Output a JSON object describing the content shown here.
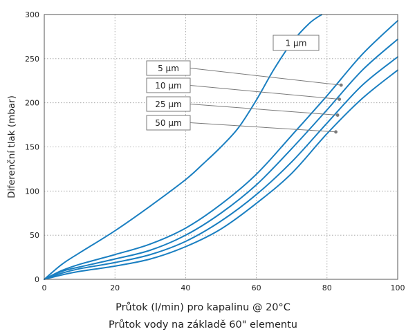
{
  "chart_data": {
    "type": "line",
    "xlabel": "Průtok (l/min) pro kapalinu @ 20°C",
    "subtitle": "Průtok vody na základě 60\" elementu",
    "ylabel": "Diferenční tlak (mbar)",
    "xlim": [
      0,
      100
    ],
    "ylim": [
      0,
      300
    ],
    "xticks": [
      0,
      20,
      40,
      60,
      80,
      100
    ],
    "yticks": [
      0,
      50,
      100,
      150,
      200,
      250,
      300
    ],
    "grid": true,
    "line_color": "#1a7fc1",
    "series": [
      {
        "name": "1 µm",
        "x": [
          0,
          5,
          10,
          20,
          30,
          40,
          45,
          50,
          55,
          60,
          65,
          70,
          75,
          78.5
        ],
        "y": [
          0,
          17,
          30,
          55,
          83,
          113,
          131,
          150,
          172,
          203,
          238,
          268,
          290,
          300
        ]
      },
      {
        "name": "5 µm",
        "x": [
          0,
          5,
          10,
          20,
          30,
          40,
          50,
          60,
          70,
          80,
          90,
          100
        ],
        "y": [
          0,
          10,
          17,
          28,
          40,
          58,
          85,
          119,
          163,
          208,
          255,
          293
        ]
      },
      {
        "name": "10 µm",
        "x": [
          0,
          5,
          10,
          20,
          30,
          40,
          50,
          60,
          70,
          80,
          90,
          100
        ],
        "y": [
          0,
          9,
          14,
          23,
          33,
          50,
          75,
          107,
          148,
          192,
          237,
          272
        ]
      },
      {
        "name": "25 µm",
        "x": [
          0,
          5,
          10,
          20,
          30,
          40,
          50,
          60,
          70,
          80,
          90,
          100
        ],
        "y": [
          0,
          7,
          12,
          19,
          28,
          43,
          66,
          96,
          133,
          177,
          220,
          252
        ]
      },
      {
        "name": "50 µm",
        "x": [
          0,
          5,
          10,
          20,
          30,
          40,
          50,
          60,
          70,
          80,
          90,
          100
        ],
        "y": [
          0,
          5,
          9,
          15,
          23,
          37,
          57,
          86,
          120,
          165,
          205,
          237
        ]
      }
    ],
    "annotations": [
      {
        "label": "1 µm",
        "series": 0,
        "pointer": false
      },
      {
        "label": "5 µm",
        "series": 1,
        "point": [
          84,
          220
        ]
      },
      {
        "label": "10 µm",
        "series": 2,
        "point": [
          83.5,
          204
        ]
      },
      {
        "label": "25 µm",
        "series": 3,
        "point": [
          83,
          186
        ]
      },
      {
        "label": "50 µm",
        "series": 4,
        "point": [
          82.5,
          167
        ]
      }
    ]
  }
}
